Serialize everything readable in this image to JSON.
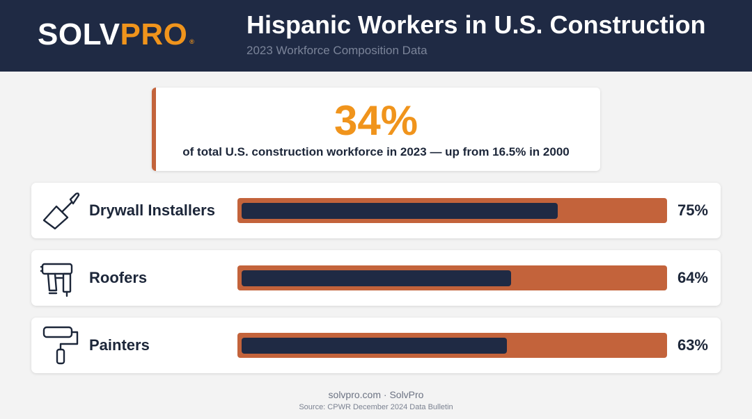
{
  "header": {
    "logo_part1": "SOLV",
    "logo_part2": "PRO",
    "logo_mark": "®",
    "title": "Hispanic Workers in U.S. Construction",
    "subtitle": "2023 Workforce Composition Data"
  },
  "highlight": {
    "value": "34%",
    "caption": "of total U.S. construction workforce in 2023 — up from 16.5% in 2000"
  },
  "chart_data": {
    "type": "bar",
    "orientation": "horizontal",
    "categories": [
      "Drywall Installers",
      "Roofers",
      "Painters"
    ],
    "values": [
      75,
      64,
      63
    ],
    "value_labels": [
      "75%",
      "64%",
      "63%"
    ],
    "icons": [
      "trowel-icon",
      "nail-gun-icon",
      "paint-roller-icon"
    ],
    "xlim": [
      0,
      100
    ],
    "colors": {
      "bar": "#1f2a44",
      "track": "#c3633b"
    }
  },
  "footer": {
    "site": "solvpro.com · SolvPro",
    "source": "Source: CPWR December 2024 Data Bulletin"
  },
  "colors": {
    "navy": "#1f2a44",
    "orange": "#f0941c",
    "terracotta": "#c3633b",
    "background": "#f3f3f3"
  }
}
